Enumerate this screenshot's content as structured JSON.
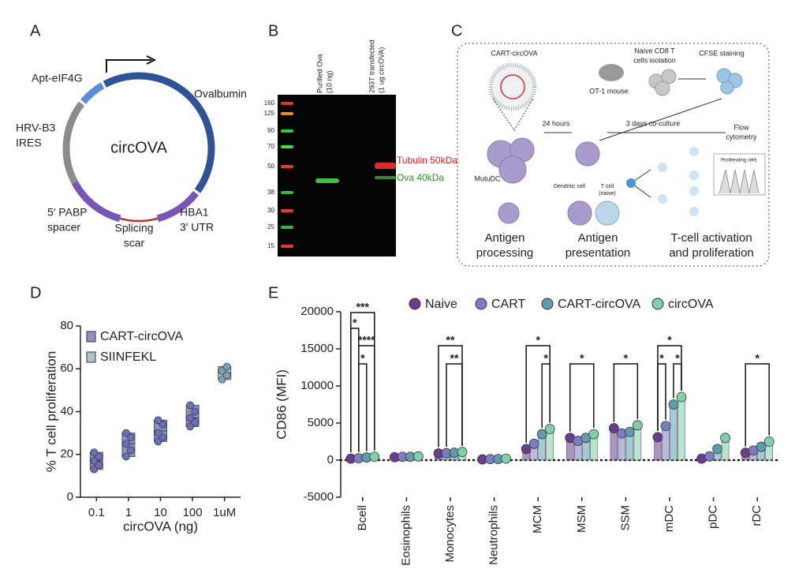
{
  "panels": {
    "a": {
      "letter": "A",
      "center": "circOVA",
      "apt": "Apt-eIF4G",
      "ova": "Ovalbumin",
      "ires": [
        "HRV-B3",
        "IRES"
      ],
      "pabp": [
        "5′ PABP",
        "spacer"
      ],
      "scar": [
        "Splicing",
        "scar"
      ],
      "hba": [
        "HBA1",
        "3′ UTR"
      ]
    },
    "b": {
      "letter": "B",
      "lanes": [
        [
          "Purified Ova",
          "(10 ng)"
        ],
        [
          "293T transfected",
          "(1 ug circOVA)"
        ]
      ],
      "ladder": [
        "160",
        "125",
        "90",
        "70",
        "50",
        "38",
        "30",
        "25",
        "15"
      ],
      "tubulin": "Tubulin 50kDa",
      "ova": "Ova 40kDa"
    },
    "c": {
      "letter": "C",
      "cart": "CART-circOVA",
      "naive": [
        "Naive CD8 T",
        "cells isolation"
      ],
      "cfse": "CFSE staining",
      "mouse": "OT-1 mouse",
      "hours": "24 hours",
      "coculture": "3 days co-culture",
      "flow": [
        "Flow",
        "cytometry"
      ],
      "mutu": "MutuDC",
      "dc": "Dendritic cell",
      "tcell": [
        "T cell",
        "(naive)"
      ],
      "prolif": "Proliferating cells",
      "step1": [
        "Antigen",
        "processing"
      ],
      "step2": [
        "Antigen",
        "presentation"
      ],
      "step3": [
        "T-cell activation",
        "and proliferation"
      ]
    }
  },
  "chart_data": [
    {
      "type": "box",
      "letter": "D",
      "y_label": "% T cell proliferation",
      "x_label": "circOVA (ng)",
      "categories": [
        "0.1",
        "1",
        "10",
        "100",
        "1uM"
      ],
      "ylim": [
        0,
        80
      ],
      "yticks": [
        0,
        20,
        40,
        60,
        80
      ],
      "series": [
        {
          "name": "CART-circOVA",
          "color": "#8c8fc8",
          "values": [
            17,
            25,
            31,
            37,
            null
          ],
          "points": [
            [
              13,
              15,
              17,
              19,
              21
            ],
            [
              19,
              22,
              25,
              28,
              30
            ],
            [
              26,
              28,
              30,
              34,
              36
            ],
            [
              33,
              35,
              37,
              40,
              43
            ],
            []
          ]
        },
        {
          "name": "SIINFEKL",
          "color": "#a9c4cf",
          "values": [
            null,
            null,
            null,
            null,
            58
          ],
          "points": [
            [],
            [],
            [],
            [],
            [
              55,
              57,
              59,
              61
            ]
          ]
        }
      ]
    },
    {
      "type": "bar",
      "letter": "E",
      "y_label": "CD86 (MFI)",
      "categories": [
        "Bcell",
        "Eosinophils",
        "Monocytes",
        "Neutrophils",
        "MCM",
        "MSM",
        "SSM",
        "mDC",
        "pDC",
        "rDC"
      ],
      "ylim": [
        -5000,
        20000
      ],
      "yticks": [
        -5000,
        0,
        5000,
        10000,
        15000,
        20000
      ],
      "series": [
        {
          "name": "Naive",
          "color": "#6a3d8e",
          "values": [
            200,
            400,
            900,
            100,
            1500,
            3000,
            4300,
            3100,
            200,
            1000
          ]
        },
        {
          "name": "CART",
          "color": "#7b7fc2",
          "values": [
            250,
            450,
            950,
            150,
            2200,
            2600,
            3600,
            4600,
            500,
            1300
          ]
        },
        {
          "name": "CART-circOVA",
          "color": "#5e9cae",
          "values": [
            350,
            450,
            1000,
            150,
            3500,
            3000,
            3800,
            7500,
            1500,
            1800
          ]
        },
        {
          "name": "circOVA",
          "color": "#7fd0aa",
          "values": [
            450,
            500,
            1100,
            200,
            4200,
            3500,
            4700,
            8500,
            3000,
            2500
          ]
        }
      ],
      "significance": [
        [
          "***",
          "*",
          "****",
          "*"
        ],
        [],
        [
          "**",
          "**"
        ],
        [],
        [
          "*",
          "*"
        ],
        [
          "*"
        ],
        [
          "*"
        ],
        [
          "*",
          "*",
          "*"
        ],
        [],
        [
          "*"
        ]
      ]
    }
  ]
}
